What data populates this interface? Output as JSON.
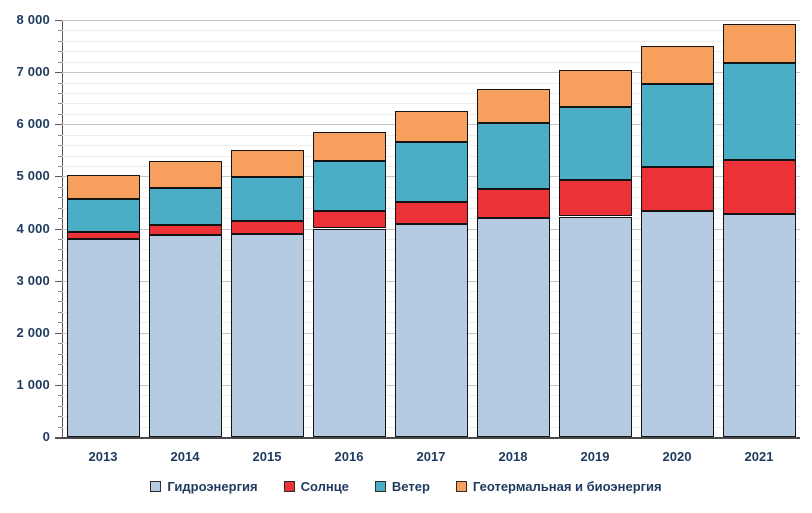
{
  "chart_data": {
    "type": "bar",
    "stacked": true,
    "title": "",
    "xlabel": "",
    "ylabel": "",
    "categories": [
      "2013",
      "2014",
      "2015",
      "2016",
      "2017",
      "2018",
      "2019",
      "2020",
      "2021"
    ],
    "series": [
      {
        "name": "Гидроэнергия",
        "color": "#b5cbe2",
        "values": [
          3800,
          3880,
          3895,
          4000,
          4085,
          4200,
          4230,
          4340,
          4270
        ]
      },
      {
        "name": "Солнце",
        "color": "#ed3237",
        "values": [
          130,
          190,
          245,
          340,
          430,
          550,
          705,
          835,
          1040
        ]
      },
      {
        "name": "Ветер",
        "color": "#4badc6",
        "values": [
          640,
          700,
          840,
          950,
          1135,
          1270,
          1405,
          1605,
          1860
        ]
      },
      {
        "name": "Геотермальная и биоэнергия",
        "color": "#f7a05e",
        "values": [
          455,
          530,
          530,
          570,
          600,
          665,
          695,
          720,
          755
        ]
      }
    ],
    "totals": [
      5025,
      5300,
      5510,
      5860,
      6250,
      6685,
      7035,
      7500,
      7925
    ],
    "ylim": [
      0,
      8000
    ],
    "y_major_step": 1000,
    "y_minor_step": 200,
    "y_tick_labels": [
      "0",
      "1 000",
      "2 000",
      "3 000",
      "4 000",
      "5 000",
      "6 000",
      "7 000",
      "8 000"
    ],
    "grid": "horizontal-major-and-minor",
    "legend_position": "bottom-center"
  },
  "colors": {
    "hydro": "#b5cbe2",
    "solar": "#ed3237",
    "wind": "#4badc6",
    "geo_bio": "#f7a05e",
    "bar_border": "#141414",
    "grid_major": "#c6c6c6",
    "grid_minor": "#ededed",
    "axis": "#4a4a4a",
    "label_text": "#1f3a5f",
    "background": "#ffffff"
  }
}
